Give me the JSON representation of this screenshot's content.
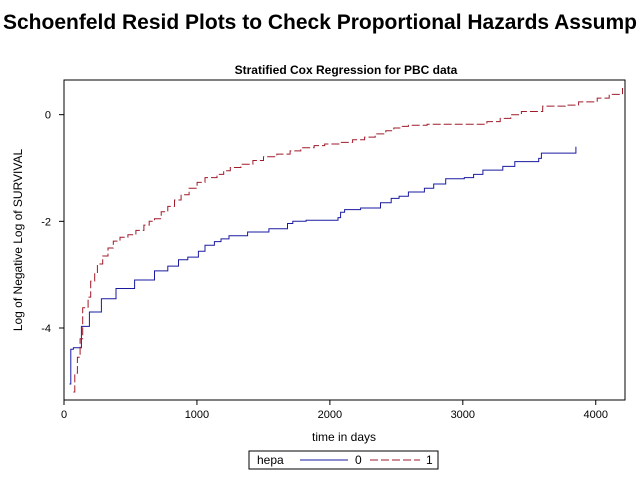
{
  "title": "Schoenfeld Resid Plots to Check Proportional  Hazards Assump",
  "chart_data": {
    "type": "line",
    "subtitle": "Stratified Cox Regression for PBC data",
    "xlabel": "time in days",
    "ylabel": "Log of Negative Log of SURVIVAL",
    "xlim": [
      0,
      4220
    ],
    "ylim": [
      -5.35,
      0.65
    ],
    "xticks": [
      0,
      1000,
      2000,
      3000,
      4000
    ],
    "yticks": [
      0,
      -2,
      -4
    ],
    "grid": false,
    "legend": {
      "title": "hepa",
      "position": "bottom"
    },
    "series": [
      {
        "name": "0",
        "color": "#1a1aa0",
        "dash": "solid",
        "x": [
          41,
          51,
          71,
          131,
          191,
          281,
          391,
          531,
          681,
          781,
          861,
          931,
          1011,
          1061,
          1131,
          1181,
          1241,
          1381,
          1541,
          1681,
          1721,
          1821,
          2061,
          2081,
          2111,
          2231,
          2381,
          2461,
          2521,
          2591,
          2711,
          2781,
          2871,
          3011,
          3081,
          3151,
          3301,
          3391,
          3571,
          3591,
          3851
        ],
        "y": [
          -5.05,
          -4.4,
          -4.37,
          -3.97,
          -3.7,
          -3.45,
          -3.26,
          -3.1,
          -2.93,
          -2.84,
          -2.72,
          -2.67,
          -2.56,
          -2.45,
          -2.38,
          -2.33,
          -2.27,
          -2.2,
          -2.14,
          -2.04,
          -2.0,
          -1.98,
          -1.93,
          -1.83,
          -1.78,
          -1.75,
          -1.65,
          -1.57,
          -1.53,
          -1.45,
          -1.38,
          -1.3,
          -1.2,
          -1.18,
          -1.12,
          -1.04,
          -0.97,
          -0.88,
          -0.82,
          -0.72,
          -0.6
        ]
      },
      {
        "name": "1",
        "color": "#a01a2a",
        "dash": "dashed",
        "x": [
          71,
          81,
          101,
          121,
          141,
          181,
          201,
          231,
          251,
          291,
          331,
          371,
          421,
          481,
          541,
          601,
          641,
          681,
          731,
          781,
          831,
          881,
          941,
          1001,
          1061,
          1151,
          1201,
          1251,
          1331,
          1421,
          1501,
          1601,
          1701,
          1781,
          1881,
          1961,
          2081,
          2171,
          2261,
          2341,
          2421,
          2481,
          2531,
          2591,
          2731,
          2871,
          3011,
          3181,
          3281,
          3361,
          3441,
          3601,
          3771,
          3871,
          4011,
          4101,
          4201
        ],
        "y": [
          -5.2,
          -4.85,
          -4.55,
          -4.2,
          -3.62,
          -3.42,
          -3.12,
          -2.96,
          -2.8,
          -2.65,
          -2.5,
          -2.37,
          -2.3,
          -2.25,
          -2.17,
          -2.07,
          -2.0,
          -1.95,
          -1.82,
          -1.72,
          -1.6,
          -1.5,
          -1.38,
          -1.27,
          -1.18,
          -1.12,
          -1.05,
          -0.99,
          -0.93,
          -0.86,
          -0.79,
          -0.74,
          -0.68,
          -0.62,
          -0.58,
          -0.55,
          -0.52,
          -0.47,
          -0.42,
          -0.36,
          -0.3,
          -0.25,
          -0.22,
          -0.2,
          -0.18,
          -0.18,
          -0.18,
          -0.13,
          -0.07,
          0.0,
          0.06,
          0.16,
          0.18,
          0.24,
          0.31,
          0.38,
          0.5
        ]
      }
    ]
  }
}
